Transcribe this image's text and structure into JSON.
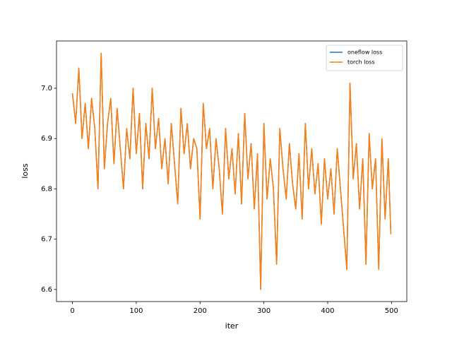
{
  "chart_data": {
    "type": "line",
    "xlabel": "iter",
    "ylabel": "loss",
    "x": [
      0,
      5,
      10,
      15,
      20,
      25,
      30,
      35,
      40,
      45,
      50,
      55,
      60,
      65,
      70,
      75,
      80,
      85,
      90,
      95,
      100,
      105,
      110,
      115,
      120,
      125,
      130,
      135,
      140,
      145,
      150,
      155,
      160,
      165,
      170,
      175,
      180,
      185,
      190,
      195,
      200,
      205,
      210,
      215,
      220,
      225,
      230,
      235,
      240,
      245,
      250,
      255,
      260,
      265,
      270,
      275,
      280,
      285,
      290,
      295,
      300,
      305,
      310,
      315,
      320,
      325,
      330,
      335,
      340,
      345,
      350,
      355,
      360,
      365,
      370,
      375,
      380,
      385,
      390,
      395,
      400,
      405,
      410,
      415,
      420,
      425,
      430,
      435,
      440,
      445,
      450,
      455,
      460,
      465,
      470,
      475,
      480,
      485,
      490,
      495,
      499
    ],
    "series": [
      {
        "name": "oneflow loss",
        "color": "#1f77b4",
        "values": [
          6.99,
          6.93,
          7.04,
          6.9,
          6.97,
          6.88,
          6.98,
          6.92,
          6.8,
          7.07,
          6.84,
          6.93,
          6.98,
          6.85,
          6.96,
          6.88,
          6.8,
          6.92,
          6.86,
          7.0,
          6.87,
          6.95,
          6.8,
          6.93,
          6.86,
          7.0,
          6.88,
          6.94,
          6.84,
          6.9,
          6.81,
          6.93,
          6.85,
          6.77,
          6.96,
          6.87,
          6.93,
          6.84,
          6.9,
          6.88,
          6.74,
          6.97,
          6.88,
          6.92,
          6.8,
          6.9,
          6.84,
          6.75,
          6.92,
          6.82,
          6.88,
          6.79,
          6.91,
          6.77,
          6.95,
          6.82,
          6.89,
          6.76,
          6.87,
          6.6,
          6.93,
          6.78,
          6.86,
          6.8,
          6.65,
          6.92,
          6.84,
          6.78,
          6.89,
          6.81,
          6.76,
          6.87,
          6.74,
          6.93,
          6.8,
          6.88,
          6.79,
          6.85,
          6.73,
          6.86,
          6.78,
          6.84,
          6.75,
          6.88,
          6.8,
          6.72,
          6.64,
          7.01,
          6.82,
          6.89,
          6.76,
          6.86,
          6.65,
          6.91,
          6.8,
          6.86,
          6.64,
          6.9,
          6.74,
          6.86,
          6.71
        ]
      },
      {
        "name": "torch loss",
        "color": "#ff7f0e",
        "values": [
          6.99,
          6.93,
          7.04,
          6.9,
          6.97,
          6.88,
          6.98,
          6.92,
          6.8,
          7.07,
          6.84,
          6.93,
          6.98,
          6.85,
          6.96,
          6.88,
          6.8,
          6.92,
          6.86,
          7.0,
          6.87,
          6.95,
          6.8,
          6.93,
          6.86,
          7.0,
          6.88,
          6.94,
          6.84,
          6.9,
          6.81,
          6.93,
          6.85,
          6.77,
          6.96,
          6.87,
          6.93,
          6.84,
          6.9,
          6.88,
          6.74,
          6.97,
          6.88,
          6.92,
          6.8,
          6.9,
          6.84,
          6.75,
          6.92,
          6.82,
          6.88,
          6.79,
          6.91,
          6.77,
          6.95,
          6.82,
          6.89,
          6.76,
          6.87,
          6.6,
          6.93,
          6.78,
          6.86,
          6.8,
          6.65,
          6.92,
          6.84,
          6.78,
          6.89,
          6.81,
          6.76,
          6.87,
          6.74,
          6.93,
          6.8,
          6.88,
          6.79,
          6.85,
          6.73,
          6.86,
          6.78,
          6.84,
          6.75,
          6.88,
          6.8,
          6.72,
          6.64,
          7.01,
          6.82,
          6.89,
          6.76,
          6.86,
          6.65,
          6.91,
          6.8,
          6.86,
          6.64,
          6.9,
          6.74,
          6.86,
          6.71
        ]
      }
    ],
    "xlim": [
      -25,
      524
    ],
    "ylim": [
      6.576,
      7.094
    ],
    "xticks": [
      0,
      100,
      200,
      300,
      400,
      500
    ],
    "yticks": [
      6.6,
      6.7,
      6.8,
      6.9,
      {
        "value": 7,
        "label": "7.0"
      }
    ],
    "grid": false,
    "legend": "upper right"
  }
}
